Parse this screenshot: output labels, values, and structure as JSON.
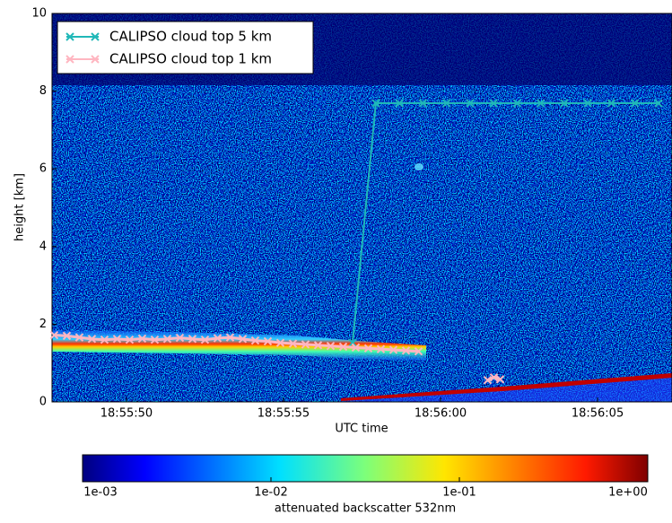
{
  "chart_data": {
    "type": "line",
    "ylabel": "height [km]",
    "xlabel": "UTC time",
    "xlim": [
      47.63,
      67.37
    ],
    "ylim": [
      0,
      10
    ],
    "xticks": [
      {
        "value": 50,
        "label": "18:55:50"
      },
      {
        "value": 55,
        "label": "18:55:55"
      },
      {
        "value": 60,
        "label": "18:56:00"
      },
      {
        "value": 65,
        "label": "18:56:05"
      }
    ],
    "yticks": [
      0,
      2,
      4,
      6,
      8,
      10
    ],
    "legend": "upper left",
    "series": [
      {
        "name": "CALIPSO cloud top 5 km",
        "color": "#20b8b8",
        "x": [
          57.2,
          57.94,
          58.69,
          59.44,
          60.19,
          60.94,
          61.69,
          62.44,
          63.19,
          63.94,
          64.69,
          65.44,
          66.19,
          66.94
        ],
        "values": [
          1.52,
          7.69,
          7.69,
          7.69,
          7.69,
          7.69,
          7.69,
          7.69,
          7.69,
          7.69,
          7.69,
          7.69,
          7.69,
          7.69
        ]
      },
      {
        "name": "CALIPSO cloud top 1 km",
        "color": "#ffb6c1",
        "x": [
          47.7,
          48.1,
          48.5,
          48.9,
          49.3,
          49.7,
          50.1,
          50.5,
          50.9,
          51.3,
          51.7,
          52.1,
          52.5,
          52.9,
          53.3,
          53.7,
          54.1,
          54.5,
          54.9,
          55.3,
          55.7,
          56.1,
          56.5,
          56.9,
          57.3,
          57.7,
          58.1,
          58.5,
          58.9,
          59.3,
          60.4,
          61.5,
          61.7,
          61.9
        ],
        "values": [
          1.72,
          1.7,
          1.66,
          1.62,
          1.6,
          1.62,
          1.6,
          1.63,
          1.6,
          1.62,
          1.65,
          1.62,
          1.6,
          1.64,
          1.66,
          1.62,
          1.58,
          1.56,
          1.52,
          1.5,
          1.48,
          1.46,
          1.44,
          1.42,
          1.4,
          1.38,
          1.36,
          1.34,
          1.32,
          1.3,
          null,
          0.56,
          0.63,
          0.58
        ]
      }
    ],
    "colorbar": {
      "label": "attenuated backscatter 532nm",
      "scale": "log",
      "clim": [
        0.001,
        1
      ],
      "ticks": [
        {
          "value": 0.001,
          "label": "1e-03"
        },
        {
          "value": 0.01,
          "label": "1e-02"
        },
        {
          "value": 0.1,
          "label": "1e-01"
        },
        {
          "value": 1,
          "label": "1e+00"
        }
      ]
    }
  }
}
